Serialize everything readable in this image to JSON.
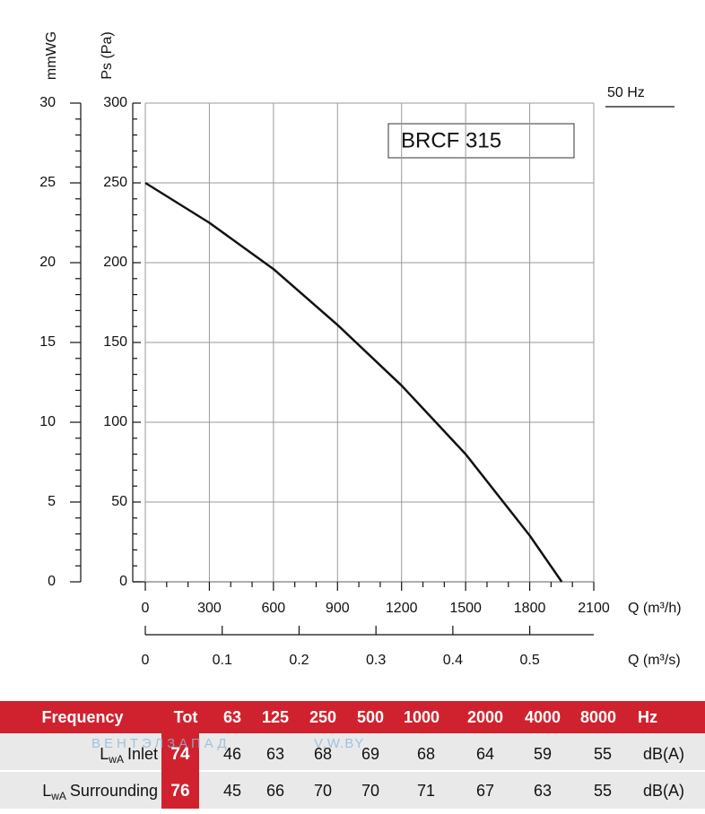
{
  "chart_data": {
    "type": "line",
    "title": "BRCF 315",
    "annotation": "50 Hz",
    "y_label": "Ps (Pa)",
    "y2_label": "mmWG",
    "x_label": "Q (m³/h)",
    "x2_label": "Q (m³/s)",
    "x": [
      0,
      300,
      600,
      900,
      1200,
      1500,
      1800,
      1950
    ],
    "series": [
      {
        "color": "#111111",
        "values": [
          250,
          225,
          196,
          161,
          123,
          80,
          29,
          0
        ]
      }
    ],
    "xlim": [
      0,
      2100
    ],
    "xticks": [
      0,
      300,
      600,
      900,
      1200,
      1500,
      1800,
      2100
    ],
    "x2lim": [
      0,
      0.5833
    ],
    "x2ticks": [
      0,
      0.1,
      0.2,
      0.3,
      0.4,
      0.5
    ],
    "ylim": [
      0,
      300
    ],
    "yticks": [
      0,
      50,
      100,
      150,
      200,
      250,
      300
    ],
    "y2lim": [
      0,
      30
    ],
    "y2ticks": [
      0,
      5,
      10,
      15,
      20,
      25,
      30
    ],
    "grid": true
  },
  "table": {
    "header": [
      "Frequency",
      "Tot",
      "63",
      "125",
      "250",
      "500",
      "1000",
      "2000",
      "4000",
      "8000",
      "Hz"
    ],
    "rows": [
      {
        "label": "L",
        "label_sub": "wA",
        "label_rest": "Inlet",
        "cells": [
          74,
          46,
          63,
          68,
          69,
          68,
          64,
          59,
          55,
          "dB(A)"
        ]
      },
      {
        "label": "L",
        "label_sub": "wA",
        "label_rest": "Surrounding",
        "cells": [
          76,
          45,
          66,
          70,
          70,
          71,
          67,
          63,
          55,
          "dB(A)"
        ]
      }
    ]
  },
  "watermark": [
    "ВЕНТЭЛЗАПАД",
    "V.W.BY"
  ]
}
